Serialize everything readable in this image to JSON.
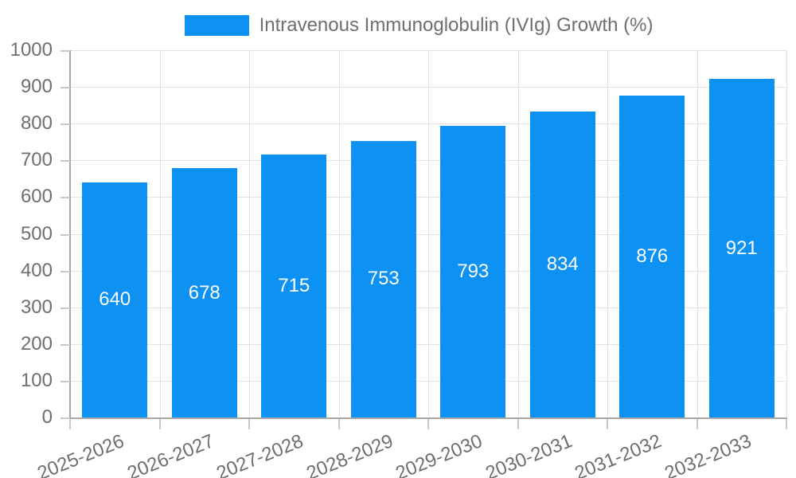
{
  "chart_data": {
    "type": "bar",
    "title": "",
    "legend_label": "Intravenous Immunoglobulin (IVIg) Growth (%)",
    "legend_position": "top-center",
    "categories": [
      "2025-2026",
      "2026-2027",
      "2027-2028",
      "2028-2029",
      "2029-2030",
      "2030-2031",
      "2031-2032",
      "2032-2033"
    ],
    "series": [
      {
        "name": "Intravenous Immunoglobulin (IVIg) Growth (%)",
        "values": [
          640,
          678,
          715,
          753,
          793,
          834,
          876,
          921
        ]
      }
    ],
    "value_labels_shown": true,
    "xlabel": "",
    "ylabel": "",
    "ylim": [
      0,
      1000
    ],
    "ytick_step": 100,
    "ytick_labels": [
      "0",
      "100",
      "200",
      "300",
      "400",
      "500",
      "600",
      "700",
      "800",
      "900",
      "1000"
    ],
    "grid": true,
    "colors": {
      "bar": "#0d92f4",
      "value_label": "#ffffff",
      "axis_line": "#a8a8a8",
      "gridline": "#e2e2e2",
      "tick": "#c9c9c9",
      "axis_text": "#6f6f6f",
      "legend_text": "#6f6f6f",
      "background": "#ffffff"
    }
  }
}
